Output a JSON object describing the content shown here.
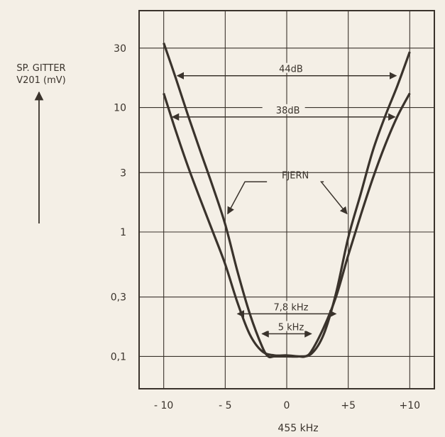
{
  "chart_data": {
    "type": "line",
    "title": "",
    "ylabel_line1": "SP. GITTER",
    "ylabel_line2": "V201 (mV)",
    "xlabel": "455 kHz",
    "x_ticks": [
      "- 10",
      "- 5",
      "0",
      "+5",
      "+10"
    ],
    "x_tick_values": [
      -10,
      -5,
      0,
      5,
      10
    ],
    "y_ticks": [
      "30",
      "10",
      "3",
      "1",
      "0,3",
      "0,1"
    ],
    "y_tick_values": [
      30,
      10,
      3,
      1,
      0.3,
      0.1
    ],
    "yscale": "log",
    "xlim": [
      -12,
      12
    ],
    "ylim": [
      0.055,
      60
    ],
    "grid": true,
    "series": [
      {
        "name": "",
        "x": [
          -10,
          -9,
          -8,
          -7,
          -6,
          -5,
          -4,
          -3,
          -2,
          -1.5,
          -1,
          0,
          1,
          2,
          3,
          4,
          5,
          6,
          7,
          8,
          9,
          10
        ],
        "y": [
          33,
          17,
          8.5,
          4.4,
          2.3,
          1.15,
          0.48,
          0.22,
          0.12,
          0.1,
          0.1,
          0.1,
          0.1,
          0.105,
          0.15,
          0.32,
          0.9,
          2.0,
          4.5,
          8.5,
          15,
          28
        ]
      },
      {
        "name": "",
        "x": [
          -10,
          -9,
          -8,
          -7,
          -6,
          -5,
          -4,
          -3,
          -2,
          -1,
          0,
          1,
          1.5,
          2,
          3,
          4,
          5,
          6,
          7,
          8,
          9,
          10
        ],
        "y": [
          13,
          6.4,
          3.3,
          1.8,
          1.0,
          0.55,
          0.27,
          0.15,
          0.11,
          0.102,
          0.102,
          0.1,
          0.1,
          0.11,
          0.17,
          0.3,
          0.65,
          1.35,
          2.7,
          5,
          8.5,
          13
        ]
      }
    ],
    "annotations": [
      {
        "text": "44dB",
        "x_from": -8.9,
        "x_to": 8.9,
        "y": 18
      },
      {
        "text": "38dB",
        "x_from": -9.3,
        "x_to": 8.8,
        "y": 8.4
      },
      {
        "text": "FJERN"
      },
      {
        "text": "7,8 kHz",
        "x_from": -4,
        "x_to": 4,
        "y": 0.22
      },
      {
        "text": "5 kHz",
        "x_from": -2,
        "x_to": 2,
        "y": 0.152
      }
    ]
  }
}
